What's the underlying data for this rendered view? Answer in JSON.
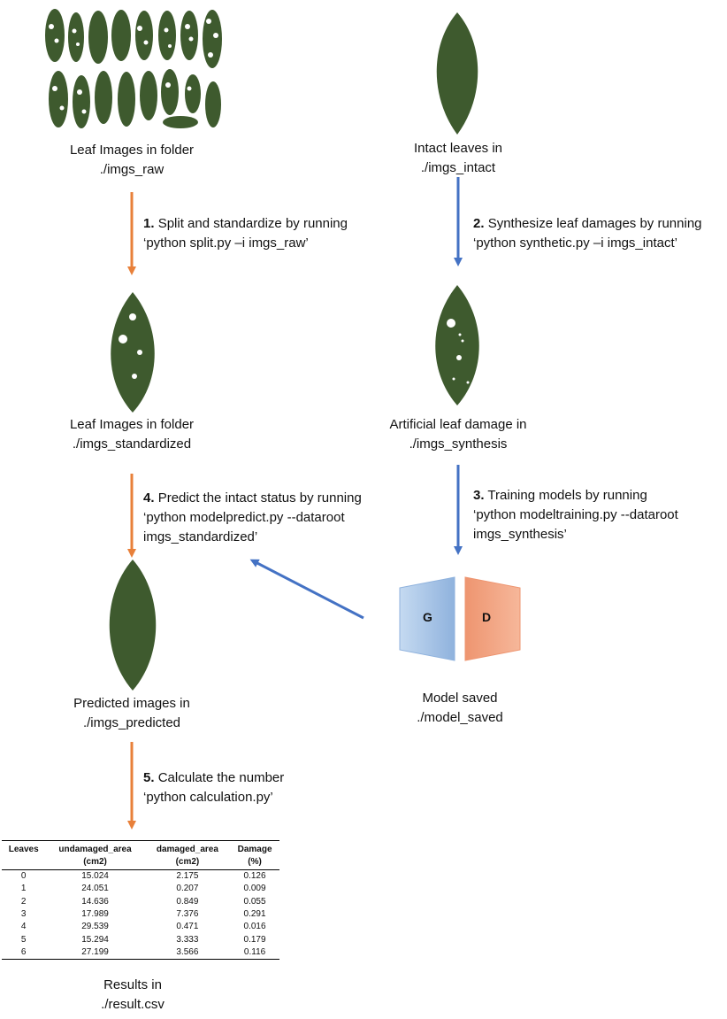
{
  "nodes": {
    "raw": {
      "line1": "Leaf Images in folder",
      "line2": "./imgs_raw"
    },
    "intact": {
      "line1": "Intact leaves in",
      "line2": "./imgs_intact"
    },
    "standardized": {
      "line1": "Leaf Images in folder",
      "line2": "./imgs_standardized"
    },
    "synthesis": {
      "line1": "Artificial leaf damage in",
      "line2": "./imgs_synthesis"
    },
    "predicted": {
      "line1": "Predicted images in",
      "line2": "./imgs_predicted"
    },
    "model": {
      "line1": "Model saved",
      "line2": "./model_saved",
      "g_label": "G",
      "d_label": "D"
    },
    "results": {
      "line1": "Results in",
      "line2": "./result.csv"
    }
  },
  "steps": {
    "s1": {
      "num": "1.",
      "text": "Split and standardize by running",
      "cmd": "‘python split.py –i imgs_raw’"
    },
    "s2": {
      "num": "2.",
      "text": "Synthesize leaf damages by running",
      "cmd": "‘python synthetic.py –i imgs_intact’"
    },
    "s3": {
      "num": "3.",
      "text": "Training models by running",
      "cmd1": "‘python modeltraining.py --dataroot",
      "cmd2": "imgs_synthesis’"
    },
    "s4": {
      "num": "4.",
      "text": "Predict the intact status by running",
      "cmd1": "‘python modelpredict.py --dataroot",
      "cmd2": "imgs_standardized’"
    },
    "s5": {
      "num": "5.",
      "text": "Calculate the number",
      "cmd": "‘python calculation.py’"
    }
  },
  "table": {
    "headers": [
      {
        "l1": "Leaves",
        "l2": ""
      },
      {
        "l1": "undamaged_area",
        "l2": "(cm2)"
      },
      {
        "l1": "damaged_area",
        "l2": "(cm2)"
      },
      {
        "l1": "Damage",
        "l2": "(%)"
      }
    ],
    "rows": [
      [
        "0",
        "15.024",
        "2.175",
        "0.126"
      ],
      [
        "1",
        "24.051",
        "0.207",
        "0.009"
      ],
      [
        "2",
        "14.636",
        "0.849",
        "0.055"
      ],
      [
        "3",
        "17.989",
        "7.376",
        "0.291"
      ],
      [
        "4",
        "29.539",
        "0.471",
        "0.016"
      ],
      [
        "5",
        "15.294",
        "3.333",
        "0.179"
      ],
      [
        "6",
        "27.199",
        "3.566",
        "0.116"
      ]
    ]
  },
  "colors": {
    "orange": "#E8803A",
    "blue": "#4472C4",
    "leaf": "#3E5A2E",
    "g_fill": "#A9C6E8",
    "d_fill": "#F2A27F"
  }
}
